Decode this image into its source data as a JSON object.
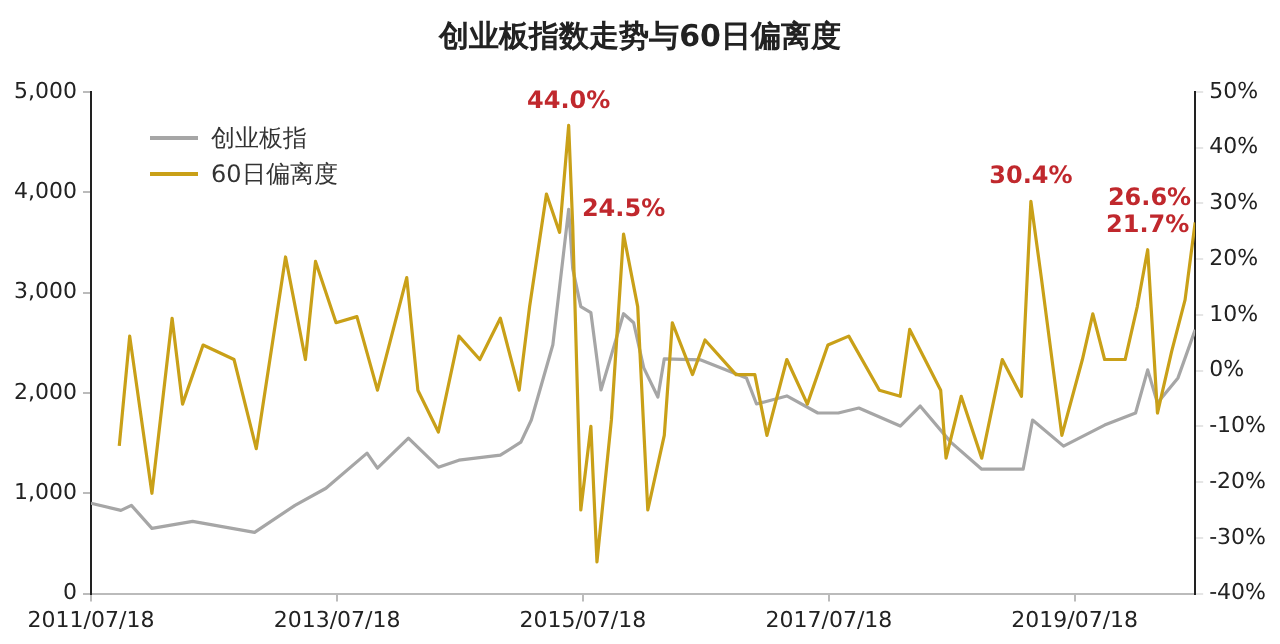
{
  "chart_data": {
    "type": "line",
    "title": "创业板指数走势与60日偏离度",
    "xlim": [
      "2011-07-18",
      "2020-07-10"
    ],
    "xticks": [
      {
        "value": "2011-07-18",
        "label": "2011/07/18"
      },
      {
        "value": "2013-07-18",
        "label": "2013/07/18"
      },
      {
        "value": "2015-07-18",
        "label": "2015/07/18"
      },
      {
        "value": "2017-07-18",
        "label": "2017/07/18"
      },
      {
        "value": "2019-07-18",
        "label": "2019/07/18"
      }
    ],
    "ylim": [
      0,
      5000
    ],
    "yticks": [
      0,
      {
        "value": 1000,
        "label": "1,000"
      },
      {
        "value": 2000,
        "label": "2,000"
      },
      {
        "value": 3000,
        "label": "3,000"
      },
      {
        "value": 4000,
        "label": "4,000"
      },
      {
        "value": 5000,
        "label": "5,000"
      }
    ],
    "y2lim": [
      -40,
      50
    ],
    "y2ticks": [
      {
        "value": -40,
        "label": "-40%"
      },
      {
        "value": -30,
        "label": "-30%"
      },
      {
        "value": -20,
        "label": "-20%"
      },
      {
        "value": -10,
        "label": "-10%"
      },
      {
        "value": 0,
        "label": "0%"
      },
      {
        "value": 10,
        "label": "10%"
      },
      {
        "value": 20,
        "label": "20%"
      },
      {
        "value": 30,
        "label": "30%"
      },
      {
        "value": 40,
        "label": "40%"
      },
      {
        "value": 50,
        "label": "50%"
      }
    ],
    "grid": false,
    "legend": "top left",
    "marker": "none",
    "line_style": "solid",
    "series": [
      {
        "name": "创业板指",
        "color": "#a6a6a6",
        "x": [
          "2011-07-18",
          "2011-10-15",
          "2011-11-15",
          "2012-01-15",
          "2012-05-15",
          "2012-11-15",
          "2013-03-15",
          "2013-06-15",
          "2013-10-15",
          "2013-11-15",
          "2014-02-15",
          "2014-05-15",
          "2014-07-15",
          "2014-11-15",
          "2015-01-15",
          "2015-02-15",
          "2015-04-20",
          "2015-06-06",
          "2015-06-18",
          "2015-07-12",
          "2015-08-11",
          "2015-09-10",
          "2015-10-11",
          "2015-11-16",
          "2015-12-16",
          "2016-01-15",
          "2016-02-26",
          "2016-03-16",
          "2016-07-01",
          "2016-11-15",
          "2016-12-15",
          "2017-03-15",
          "2017-06-15",
          "2017-08-15",
          "2017-10-15",
          "2018-02-15",
          "2018-04-15",
          "2018-07-15",
          "2018-10-15",
          "2019-02-15",
          "2019-03-15",
          "2019-06-15",
          "2019-10-15",
          "2020-01-15",
          "2020-02-20",
          "2020-03-20",
          "2020-05-20",
          "2020-07-10"
        ],
        "values": [
          900,
          830,
          880,
          650,
          720,
          610,
          880,
          1050,
          1400,
          1250,
          1550,
          1260,
          1330,
          1380,
          1510,
          1730,
          2480,
          3830,
          3240,
          2860,
          2800,
          2030,
          2380,
          2790,
          2700,
          2250,
          1960,
          2340,
          2330,
          2150,
          1890,
          1970,
          1800,
          1800,
          1850,
          1670,
          1870,
          1510,
          1240,
          1240,
          1730,
          1470,
          1680,
          1800,
          2230,
          1900,
          2150,
          2630
        ]
      },
      {
        "name": "60日偏离度",
        "color": "#c9a018",
        "axis": "y2",
        "x": [
          "2011-10-10",
          "2011-11-10",
          "2012-01-15",
          "2012-03-15",
          "2012-04-15",
          "2012-06-15",
          "2012-09-15",
          "2012-11-20",
          "2013-02-15",
          "2013-04-15",
          "2013-05-15",
          "2013-07-15",
          "2013-09-15",
          "2013-11-15",
          "2014-02-10",
          "2014-03-15",
          "2014-05-15",
          "2014-07-15",
          "2014-09-15",
          "2014-11-15",
          "2015-01-10",
          "2015-02-10",
          "2015-04-01",
          "2015-05-10",
          "2015-06-06",
          "2015-06-18",
          "2015-07-12",
          "2015-08-11",
          "2015-08-29",
          "2015-10-11",
          "2015-11-16",
          "2015-12-28",
          "2016-01-27",
          "2016-03-16",
          "2016-04-09",
          "2016-06-08",
          "2016-07-15",
          "2016-10-15",
          "2016-12-10",
          "2017-01-15",
          "2017-03-15",
          "2017-05-15",
          "2017-07-15",
          "2017-09-15",
          "2017-12-15",
          "2018-02-15",
          "2018-03-15",
          "2018-06-15",
          "2018-07-01",
          "2018-08-15",
          "2018-10-15",
          "2018-12-15",
          "2019-02-10",
          "2019-03-10",
          "2019-04-10",
          "2019-06-10",
          "2019-08-10",
          "2019-09-10",
          "2019-10-15",
          "2019-12-15",
          "2020-01-20",
          "2020-02-20",
          "2020-03-20",
          "2020-05-01",
          "2020-06-10",
          "2020-07-10"
        ],
        "value_labels": [
          null,
          null,
          null,
          null,
          null,
          null,
          null,
          null,
          null,
          null,
          null,
          null,
          null,
          null,
          null,
          null,
          null,
          null,
          null,
          null,
          null,
          null,
          null,
          null,
          "44.0%",
          null,
          null,
          null,
          null,
          null,
          "24.5%",
          null,
          null,
          null,
          null,
          null,
          null,
          null,
          null,
          null,
          null,
          null,
          null,
          null,
          null,
          null,
          null,
          null,
          null,
          null,
          null,
          null,
          null,
          "30.4%",
          null,
          null,
          null,
          null,
          null,
          null,
          null,
          "21.7%",
          null,
          null,
          null,
          "26.6%"
        ],
        "values": [
          -13.5,
          6.2,
          -22.0,
          9.4,
          -6.0,
          4.6,
          2.0,
          -14.0,
          20.4,
          2.0,
          19.6,
          8.6,
          9.7,
          -3.5,
          16.7,
          -3.5,
          -11.0,
          6.2,
          2.0,
          9.4,
          -3.5,
          11.5,
          31.7,
          24.8,
          44.0,
          26.0,
          -25.0,
          -10.0,
          -34.3,
          -8.8,
          24.5,
          11.5,
          -25.0,
          -11.6,
          8.6,
          -0.7,
          5.5,
          -0.7,
          -0.7,
          -11.6,
          2.0,
          -6.0,
          4.6,
          6.2,
          -3.5,
          -4.6,
          7.4,
          -3.5,
          -15.7,
          -4.6,
          -15.7,
          2.0,
          -4.6,
          30.4,
          16.7,
          -11.6,
          2.0,
          10.2,
          2.0,
          2.0,
          11.5,
          21.7,
          -7.6,
          3.4,
          12.7,
          26.6
        ]
      }
    ]
  }
}
